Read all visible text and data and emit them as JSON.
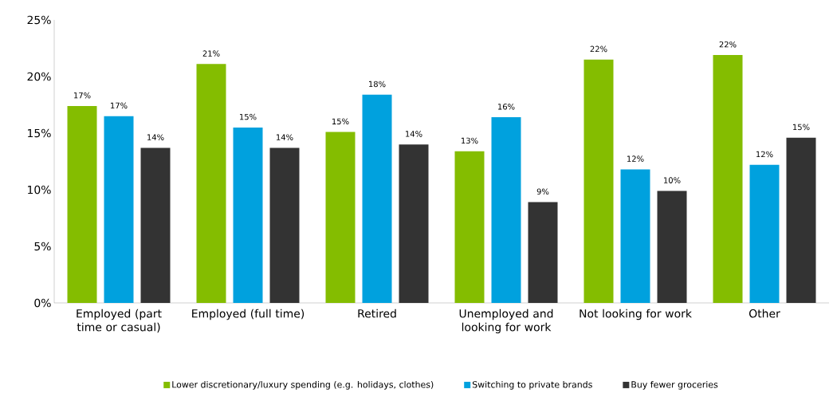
{
  "chart_data": {
    "type": "bar",
    "categories": [
      "Employed (part time or casual)",
      "Employed (full time)",
      "Retired",
      "Unemployed and looking for work",
      "Not looking for work",
      "Other"
    ],
    "series": [
      {
        "name": "Lower discretionary/luxury spending (e.g. holidays, clothes)",
        "color": "#84bd00",
        "values": [
          17.4,
          21.1,
          15.1,
          13.4,
          21.5,
          21.9
        ],
        "value_labels": [
          "17%",
          "21%",
          "15%",
          "13%",
          "22%",
          "22%"
        ]
      },
      {
        "name": "Switching to private brands",
        "color": "#00a1de",
        "values": [
          16.5,
          15.5,
          18.4,
          16.4,
          11.8,
          12.2
        ],
        "value_labels": [
          "17%",
          "15%",
          "18%",
          "16%",
          "12%",
          "12%"
        ]
      },
      {
        "name": "Buy fewer groceries",
        "color": "#333333",
        "values": [
          13.7,
          13.7,
          14.0,
          8.9,
          9.9,
          14.6
        ],
        "value_labels": [
          "14%",
          "14%",
          "14%",
          "9%",
          "10%",
          "15%"
        ]
      }
    ],
    "ylim": [
      0,
      25
    ],
    "yticks": [
      {
        "value": 0,
        "label": "0%"
      },
      {
        "value": 5,
        "label": "5%"
      },
      {
        "value": 10,
        "label": "10%"
      },
      {
        "value": 15,
        "label": "15%"
      },
      {
        "value": 20,
        "label": "20%"
      },
      {
        "value": 25,
        "label": "25%"
      }
    ],
    "legend": "bottom"
  }
}
